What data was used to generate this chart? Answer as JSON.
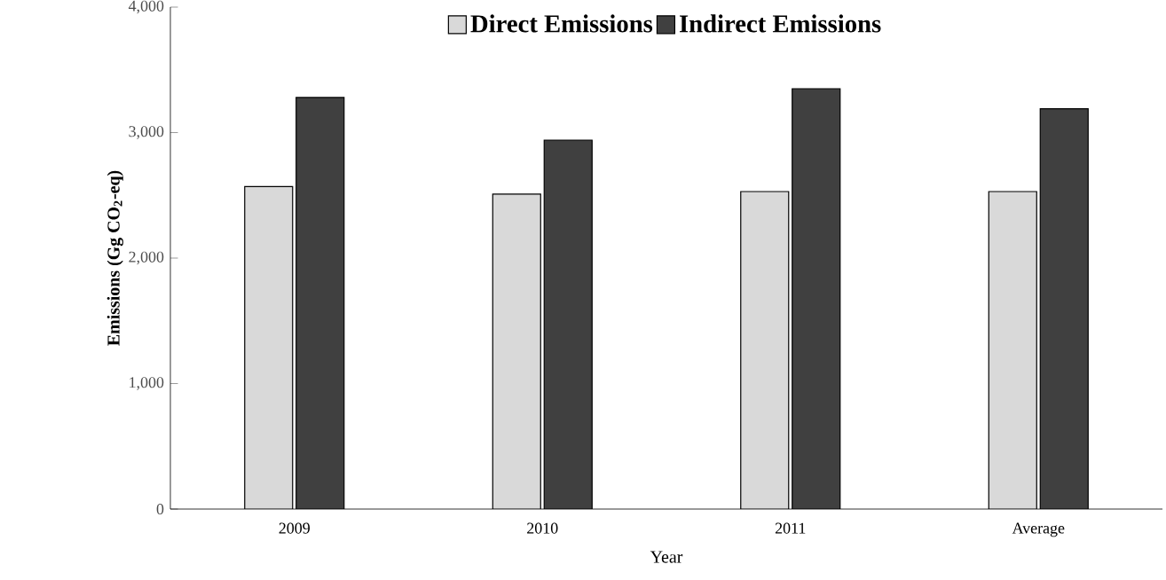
{
  "chart_data": {
    "type": "bar",
    "categories": [
      "2009",
      "2010",
      "2011",
      "Average"
    ],
    "xlabel": "Year",
    "ylabel": "Emissions (Gg CO$_{2}$-eq)",
    "ylim": [
      0,
      4000
    ],
    "yticks": [
      {
        "value": 0,
        "label": "0"
      },
      {
        "value": 1000,
        "label": "1,000"
      },
      {
        "value": 2000,
        "label": "2,000"
      },
      {
        "value": 3000,
        "label": "3,000"
      },
      {
        "value": 4000,
        "label": "4,000"
      }
    ],
    "legend": "top",
    "grid": false,
    "series": [
      {
        "name": "Direct Emissions",
        "color": "#d9d9d9",
        "values": [
          2570,
          2510,
          2530,
          2530
        ]
      },
      {
        "name": "Indirect Emissions",
        "color": "#404040",
        "values": [
          3280,
          2940,
          3350,
          3190
        ]
      }
    ]
  }
}
